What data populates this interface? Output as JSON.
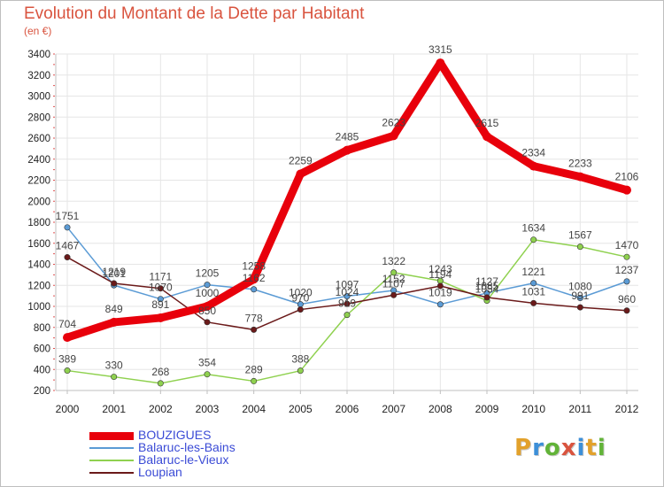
{
  "title": "Evolution du Montant de la Dette par Habitant",
  "unit": "(en €)",
  "logo": "Proxiti",
  "logo_colors": [
    "#e2a12b",
    "#3c8fd8",
    "#62b338",
    "#d9543f",
    "#3c8fd8",
    "#e2a12b",
    "#62b338"
  ],
  "colors": {
    "grid": "#e6e6e6",
    "axis": "#bfbfbf",
    "tick_text": "#222222",
    "label_text": "#444444",
    "legend_text": "#3b4bd6"
  },
  "chart_data": {
    "type": "line",
    "title": "Evolution du Montant de la Dette par Habitant",
    "ylabel": "(en €)",
    "xlabel": "",
    "x": [
      "2000",
      "2001",
      "2002",
      "2003",
      "2004",
      "2005",
      "2006",
      "2007",
      "2008",
      "2009",
      "2010",
      "2011",
      "2012"
    ],
    "ylim": [
      200,
      3400
    ],
    "yticks": [
      200,
      400,
      600,
      800,
      1000,
      1200,
      1400,
      1600,
      1800,
      2000,
      2200,
      2400,
      2600,
      2800,
      3000,
      3200,
      3400
    ],
    "grid": true,
    "legend_position": "bottom-left",
    "series": [
      {
        "name": "BOUZIGUES",
        "color": "#e8000b",
        "width": 9,
        "values": [
          704,
          849,
          891,
          1000,
          1258,
          2259,
          2485,
          2623,
          3315,
          2615,
          2334,
          2233,
          2106
        ]
      },
      {
        "name": "Balaruc-les-Bains",
        "color": "#5b9bd5",
        "width": 1.5,
        "values": [
          1751,
          1201,
          1070,
          1205,
          1162,
          1020,
          1097,
          1152,
          1019,
          1127,
          1221,
          1080,
          1237
        ]
      },
      {
        "name": "Balaruc-le-Vieux",
        "color": "#8fd14f",
        "width": 1.5,
        "values": [
          389,
          330,
          268,
          354,
          289,
          388,
          919,
          1322,
          1243,
          1054,
          1634,
          1567,
          1470
        ]
      },
      {
        "name": "Loupian",
        "color": "#6b1a1a",
        "width": 1.5,
        "values": [
          1467,
          1219,
          1171,
          850,
          778,
          970,
          1024,
          1107,
          1194,
          1085,
          1031,
          991,
          960
        ]
      }
    ]
  }
}
